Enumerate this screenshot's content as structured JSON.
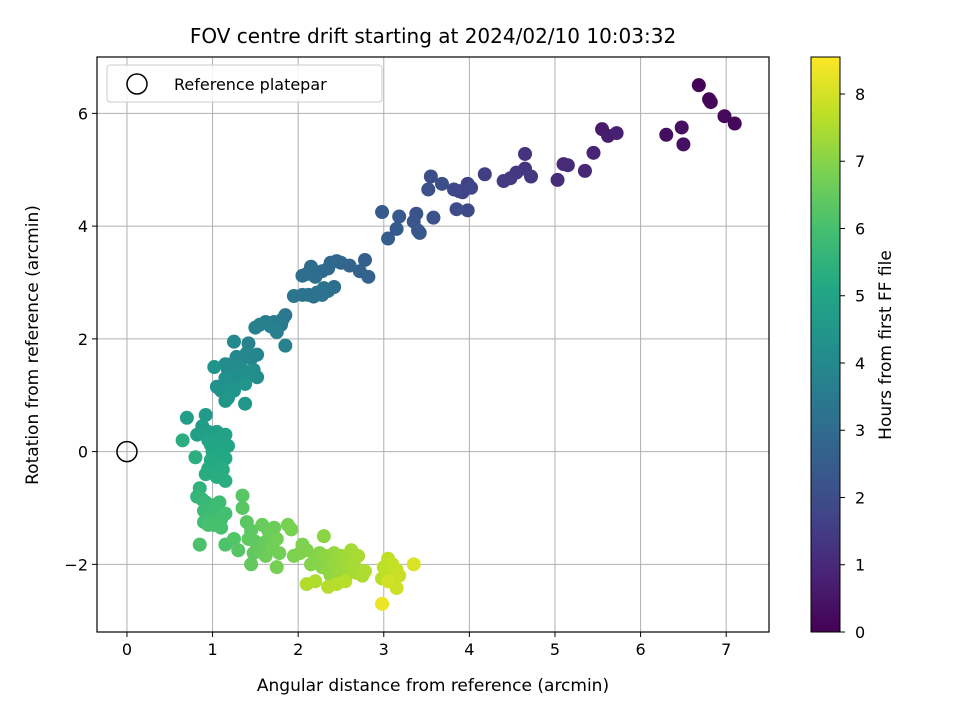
{
  "chart_data": {
    "type": "scatter",
    "title": "FOV centre drift starting at 2024/02/10 10:03:32",
    "xlabel": "Angular distance from reference (arcmin)",
    "ylabel": "Rotation from reference (arcmin)",
    "xlim": [
      -0.35,
      7.5
    ],
    "ylim": [
      -3.2,
      7.0
    ],
    "xticks": [
      0,
      1,
      2,
      3,
      4,
      5,
      6,
      7
    ],
    "yticks": [
      -2,
      0,
      2,
      4,
      6
    ],
    "xtick_labels": [
      "0",
      "1",
      "2",
      "3",
      "4",
      "5",
      "6",
      "7"
    ],
    "ytick_labels": [
      "−2",
      "0",
      "2",
      "4",
      "6"
    ],
    "grid": true,
    "legend": {
      "placement": "top-left",
      "entries": [
        {
          "label": "Reference platepar",
          "marker": "open-circle",
          "x": 0,
          "y": 0
        }
      ]
    },
    "colorbar": {
      "label": "Hours from first FF file",
      "colormap": "viridis",
      "range": [
        0,
        8.55
      ],
      "ticks": [
        0,
        1,
        2,
        3,
        4,
        5,
        6,
        7,
        8
      ],
      "tick_labels": [
        "0",
        "1",
        "2",
        "3",
        "4",
        "5",
        "6",
        "7",
        "8"
      ]
    },
    "points": [
      [
        6.68,
        6.5,
        0.05
      ],
      [
        6.8,
        6.25,
        0.1
      ],
      [
        6.82,
        6.2,
        0.12
      ],
      [
        6.98,
        5.95,
        0.18
      ],
      [
        7.1,
        5.82,
        0.2
      ],
      [
        6.3,
        5.62,
        0.3
      ],
      [
        6.48,
        5.75,
        0.35
      ],
      [
        6.5,
        5.45,
        0.4
      ],
      [
        5.55,
        5.72,
        0.6
      ],
      [
        5.62,
        5.6,
        0.7
      ],
      [
        5.72,
        5.65,
        0.75
      ],
      [
        5.45,
        5.3,
        0.85
      ],
      [
        5.35,
        4.98,
        0.95
      ],
      [
        5.1,
        5.1,
        1.0
      ],
      [
        5.15,
        5.08,
        1.05
      ],
      [
        5.03,
        4.82,
        1.1
      ],
      [
        4.65,
        5.28,
        1.25
      ],
      [
        4.65,
        5.02,
        1.3
      ],
      [
        4.55,
        4.95,
        1.35
      ],
      [
        4.72,
        4.88,
        1.4
      ],
      [
        4.48,
        4.85,
        1.45
      ],
      [
        4.4,
        4.8,
        1.5
      ],
      [
        4.18,
        4.92,
        1.55
      ],
      [
        3.98,
        4.75,
        1.65
      ],
      [
        3.92,
        4.6,
        1.7
      ],
      [
        3.88,
        4.62,
        1.75
      ],
      [
        4.02,
        4.68,
        1.8
      ],
      [
        3.82,
        4.65,
        1.85
      ],
      [
        3.98,
        4.28,
        1.9
      ],
      [
        3.85,
        4.3,
        1.95
      ],
      [
        3.55,
        4.88,
        2.0
      ],
      [
        3.68,
        4.75,
        2.05
      ],
      [
        3.52,
        4.65,
        2.1
      ],
      [
        3.58,
        4.15,
        2.15
      ],
      [
        3.38,
        4.22,
        2.2
      ],
      [
        3.35,
        4.08,
        2.25
      ],
      [
        3.42,
        3.88,
        2.3
      ],
      [
        3.4,
        3.92,
        2.32
      ],
      [
        3.18,
        4.17,
        2.38
      ],
      [
        3.15,
        3.95,
        2.42
      ],
      [
        2.98,
        4.25,
        2.45
      ],
      [
        3.05,
        3.78,
        2.5
      ],
      [
        2.78,
        3.4,
        2.6
      ],
      [
        2.82,
        3.1,
        2.65
      ],
      [
        2.72,
        3.2,
        2.7
      ],
      [
        2.6,
        3.3,
        2.75
      ],
      [
        2.5,
        3.35,
        2.8
      ],
      [
        2.45,
        3.38,
        2.85
      ],
      [
        2.38,
        3.35,
        2.88
      ],
      [
        2.35,
        3.25,
        2.9
      ],
      [
        2.28,
        3.2,
        2.95
      ],
      [
        2.15,
        3.28,
        3.0
      ],
      [
        2.1,
        3.15,
        3.02
      ],
      [
        2.2,
        3.1,
        3.05
      ],
      [
        2.05,
        3.12,
        3.08
      ],
      [
        2.42,
        2.92,
        3.1
      ],
      [
        2.35,
        2.85,
        3.15
      ],
      [
        2.3,
        2.9,
        3.18
      ],
      [
        2.22,
        2.82,
        3.2
      ],
      [
        2.28,
        2.78,
        3.22
      ],
      [
        2.12,
        2.78,
        3.25
      ],
      [
        2.18,
        2.75,
        3.28
      ],
      [
        2.05,
        2.78,
        3.3
      ],
      [
        1.95,
        2.76,
        3.35
      ],
      [
        1.85,
        2.42,
        3.4
      ],
      [
        1.82,
        2.35,
        3.45
      ],
      [
        1.8,
        2.25,
        3.5
      ],
      [
        1.72,
        2.3,
        3.55
      ],
      [
        1.68,
        2.22,
        3.6
      ],
      [
        1.62,
        2.3,
        3.62
      ],
      [
        1.75,
        2.12,
        3.65
      ],
      [
        1.5,
        2.2,
        3.7
      ],
      [
        1.55,
        2.25,
        3.72
      ],
      [
        1.85,
        1.88,
        3.75
      ],
      [
        1.42,
        1.92,
        3.8
      ],
      [
        1.52,
        1.72,
        3.85
      ],
      [
        1.45,
        1.65,
        3.9
      ],
      [
        1.4,
        1.75,
        3.92
      ],
      [
        1.32,
        1.62,
        3.95
      ],
      [
        1.28,
        1.68,
        3.98
      ],
      [
        1.25,
        1.95,
        4.0
      ],
      [
        1.22,
        1.55,
        4.02
      ],
      [
        1.18,
        1.45,
        4.05
      ],
      [
        1.15,
        1.55,
        4.08
      ],
      [
        1.28,
        1.4,
        4.1
      ],
      [
        1.35,
        1.45,
        4.12
      ],
      [
        1.48,
        1.45,
        4.15
      ],
      [
        1.52,
        1.32,
        4.18
      ],
      [
        1.42,
        1.35,
        4.2
      ],
      [
        1.3,
        1.3,
        4.22
      ],
      [
        1.22,
        1.25,
        4.25
      ],
      [
        1.15,
        1.3,
        4.28
      ],
      [
        1.2,
        1.18,
        4.3
      ],
      [
        1.05,
        1.15,
        4.32
      ],
      [
        1.1,
        1.08,
        4.35
      ],
      [
        1.02,
        1.5,
        4.38
      ],
      [
        1.38,
        1.2,
        4.4
      ],
      [
        1.25,
        1.08,
        4.42
      ],
      [
        1.18,
        0.95,
        4.45
      ],
      [
        1.15,
        0.9,
        4.48
      ],
      [
        1.38,
        0.85,
        4.5
      ],
      [
        0.92,
        0.65,
        4.6
      ],
      [
        0.88,
        0.45,
        4.7
      ],
      [
        0.7,
        0.6,
        4.75
      ],
      [
        0.95,
        0.35,
        4.8
      ],
      [
        0.82,
        0.3,
        4.82
      ],
      [
        1.05,
        0.35,
        4.85
      ],
      [
        1.1,
        0.25,
        4.88
      ],
      [
        1.02,
        0.2,
        4.9
      ],
      [
        1.15,
        0.3,
        4.92
      ],
      [
        0.95,
        0.2,
        4.95
      ],
      [
        0.98,
        0.12,
        4.98
      ],
      [
        1.12,
        0.15,
        5.0
      ],
      [
        1.18,
        0.1,
        5.02
      ],
      [
        1.05,
        0.05,
        5.05
      ],
      [
        1.0,
        0.0,
        5.08
      ],
      [
        1.08,
        -0.05,
        5.1
      ],
      [
        1.15,
        -0.12,
        5.12
      ],
      [
        0.98,
        -0.15,
        5.15
      ],
      [
        1.02,
        -0.2,
        5.18
      ],
      [
        1.08,
        -0.25,
        5.2
      ],
      [
        0.95,
        -0.3,
        5.22
      ],
      [
        1.12,
        -0.32,
        5.25
      ],
      [
        0.92,
        -0.4,
        5.28
      ],
      [
        1.05,
        -0.45,
        5.3
      ],
      [
        1.15,
        -0.52,
        5.32
      ],
      [
        0.65,
        0.2,
        5.35
      ],
      [
        0.8,
        -0.1,
        5.38
      ],
      [
        0.85,
        -0.65,
        5.5
      ],
      [
        0.82,
        -0.8,
        5.6
      ],
      [
        0.88,
        -0.85,
        5.65
      ],
      [
        0.92,
        -0.9,
        5.7
      ],
      [
        0.95,
        -1.0,
        5.72
      ],
      [
        0.9,
        -1.05,
        5.75
      ],
      [
        0.98,
        -1.1,
        5.78
      ],
      [
        1.02,
        -0.95,
        5.8
      ],
      [
        1.05,
        -1.05,
        5.82
      ],
      [
        1.08,
        -0.9,
        5.85
      ],
      [
        0.95,
        -1.15,
        5.88
      ],
      [
        0.9,
        -1.25,
        5.9
      ],
      [
        1.02,
        -1.3,
        5.92
      ],
      [
        1.1,
        -1.2,
        5.95
      ],
      [
        1.15,
        -1.1,
        5.98
      ],
      [
        1.05,
        -1.25,
        6.0
      ],
      [
        0.95,
        -1.3,
        6.02
      ],
      [
        1.1,
        -1.35,
        6.05
      ],
      [
        0.85,
        -1.65,
        6.1
      ],
      [
        1.15,
        -1.65,
        6.15
      ],
      [
        1.25,
        -1.55,
        6.2
      ],
      [
        1.3,
        -1.75,
        6.25
      ],
      [
        1.35,
        -0.78,
        6.3
      ],
      [
        1.35,
        -1.0,
        6.32
      ],
      [
        1.4,
        -1.25,
        6.35
      ],
      [
        1.45,
        -1.4,
        6.38
      ],
      [
        1.42,
        -1.55,
        6.4
      ],
      [
        1.5,
        -1.6,
        6.42
      ],
      [
        1.48,
        -1.8,
        6.45
      ],
      [
        1.45,
        -2.0,
        6.48
      ],
      [
        1.55,
        -1.75,
        6.5
      ],
      [
        1.62,
        -1.6,
        6.52
      ],
      [
        1.58,
        -1.3,
        6.55
      ],
      [
        1.65,
        -1.4,
        6.58
      ],
      [
        1.72,
        -1.35,
        6.6
      ],
      [
        1.68,
        -1.55,
        6.62
      ],
      [
        1.62,
        -1.85,
        6.65
      ],
      [
        1.7,
        -1.7,
        6.68
      ],
      [
        1.78,
        -1.8,
        6.7
      ],
      [
        1.75,
        -1.55,
        6.72
      ],
      [
        1.75,
        -2.05,
        6.75
      ],
      [
        1.88,
        -1.3,
        6.8
      ],
      [
        1.92,
        -1.38,
        6.82
      ],
      [
        1.95,
        -1.85,
        6.85
      ],
      [
        2.05,
        -1.65,
        6.88
      ],
      [
        2.02,
        -1.8,
        6.9
      ],
      [
        2.1,
        -1.75,
        6.92
      ],
      [
        2.15,
        -2.0,
        6.95
      ],
      [
        2.2,
        -1.9,
        6.98
      ],
      [
        2.25,
        -1.8,
        7.0
      ],
      [
        2.28,
        -2.05,
        7.02
      ],
      [
        2.3,
        -1.5,
        7.05
      ],
      [
        2.32,
        -1.85,
        7.08
      ],
      [
        2.35,
        -2.1,
        7.1
      ],
      [
        2.38,
        -2.2,
        7.12
      ],
      [
        2.4,
        -1.95,
        7.15
      ],
      [
        2.42,
        -1.8,
        7.18
      ],
      [
        2.45,
        -2.0,
        7.2
      ],
      [
        2.48,
        -2.15,
        7.22
      ],
      [
        2.5,
        -1.85,
        7.25
      ],
      [
        2.52,
        -2.05,
        7.28
      ],
      [
        2.55,
        -2.25,
        7.3
      ],
      [
        2.58,
        -1.9,
        7.32
      ],
      [
        2.6,
        -2.1,
        7.35
      ],
      [
        2.62,
        -1.75,
        7.38
      ],
      [
        2.65,
        -2.0,
        7.4
      ],
      [
        2.68,
        -2.15,
        7.42
      ],
      [
        2.7,
        -1.85,
        7.45
      ],
      [
        2.75,
        -2.2,
        7.48
      ],
      [
        2.78,
        -2.12,
        7.5
      ],
      [
        2.2,
        -2.3,
        7.52
      ],
      [
        2.1,
        -2.35,
        7.55
      ],
      [
        2.35,
        -2.4,
        7.58
      ],
      [
        2.45,
        -2.35,
        7.6
      ],
      [
        2.55,
        -2.3,
        7.62
      ],
      [
        2.98,
        -2.25,
        7.65
      ],
      [
        3.0,
        -2.05,
        7.68
      ],
      [
        3.05,
        -1.9,
        7.7
      ],
      [
        3.08,
        -2.15,
        7.72
      ],
      [
        3.1,
        -2.0,
        7.75
      ],
      [
        3.12,
        -2.25,
        7.78
      ],
      [
        3.15,
        -2.1,
        7.8
      ],
      [
        3.18,
        -2.2,
        7.85
      ],
      [
        3.15,
        -2.42,
        7.9
      ],
      [
        3.05,
        -2.3,
        7.95
      ],
      [
        3.35,
        -2.0,
        8.1
      ],
      [
        2.98,
        -2.7,
        8.3
      ]
    ]
  }
}
